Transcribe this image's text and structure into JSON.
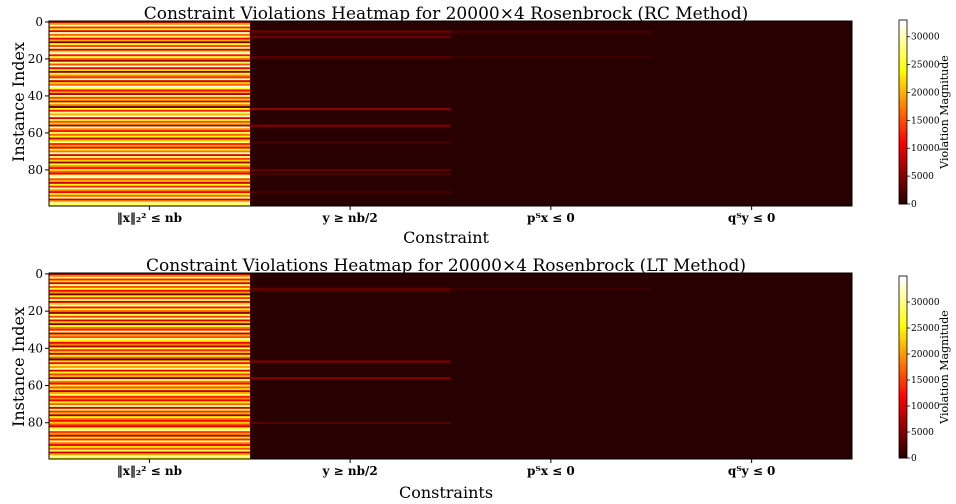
{
  "chart_data": [
    {
      "type": "heatmap",
      "title": "Constraint Violations Heatmap for 20000×4 Rosenbrock (RC Method)",
      "xlabel": "Constraint",
      "ylabel": "Instance Index",
      "categories": [
        "‖x‖₂² ≤ nb",
        "y ≥ nb/2",
        "pᵀx ≤ 0",
        "qᵀy ≤ 0"
      ],
      "y_ticks": [
        0,
        20,
        40,
        60,
        80
      ],
      "y_range": [
        0,
        99
      ],
      "colorbar": {
        "label": "Violation Magnitude",
        "min": 0,
        "max": 33000,
        "ticks": [
          0,
          5000,
          10000,
          15000,
          20000,
          25000,
          30000
        ]
      },
      "colormap": "hot",
      "col1_values": [
        6000,
        18000,
        30000,
        13000,
        24000,
        9000,
        31000,
        16000,
        27000,
        11000,
        20000,
        4000,
        25000,
        14000,
        29000,
        8000,
        22000,
        33000,
        12000,
        26000,
        17000,
        6000,
        28000,
        15000,
        31000,
        10000,
        23000,
        5000,
        27000,
        18000,
        13000,
        30000,
        8000,
        21000,
        16000,
        32000,
        25000,
        11000,
        19000,
        7000,
        28000,
        14000,
        22000,
        9000,
        26000,
        17000,
        3000,
        24000,
        12000,
        29000,
        20000,
        31000,
        10000,
        26000,
        15000,
        22000,
        6000,
        30000,
        18000,
        12000,
        27000,
        16000,
        24000,
        8000,
        21000,
        29000,
        13000,
        19000,
        11000,
        25000,
        17000,
        31000,
        9000,
        28000,
        14000,
        22000,
        6000,
        26000,
        18000,
        12000,
        23000,
        16000,
        10000,
        27000,
        32000,
        15000,
        20000,
        8000,
        25000,
        13000,
        30000,
        18000,
        11000,
        24000,
        16000,
        29000,
        9000,
        21000,
        31000,
        26000
      ],
      "col2_rows": [
        [
          5,
          3000
        ],
        [
          6,
          2000
        ],
        [
          8,
          3500
        ],
        [
          19,
          2500
        ],
        [
          47,
          5000
        ],
        [
          56,
          4500
        ],
        [
          65,
          1500
        ],
        [
          80,
          3000
        ],
        [
          82,
          1800
        ],
        [
          92,
          1500
        ]
      ],
      "col3_rows": [
        [
          5,
          1200
        ],
        [
          6,
          1000
        ],
        [
          19,
          1000
        ]
      ],
      "col4_rows": []
    },
    {
      "type": "heatmap",
      "title": "Constraint Violations Heatmap for 20000×4 Rosenbrock (LT Method)",
      "xlabel": "Constraints",
      "ylabel": "Instance Index",
      "categories": [
        "‖x‖₂² ≤ nb",
        "y ≥ nb/2",
        "pᵀx ≤ 0",
        "qᵀy ≤ 0"
      ],
      "y_ticks": [
        0,
        20,
        40,
        60,
        80
      ],
      "y_range": [
        0,
        99
      ],
      "colorbar": {
        "label": "Violation Magnitude",
        "min": 0,
        "max": 35000,
        "ticks": [
          0,
          5000,
          10000,
          15000,
          20000,
          25000,
          30000
        ]
      },
      "colormap": "hot",
      "col1_values": [
        6000,
        18000,
        30000,
        13000,
        24000,
        9000,
        31000,
        16000,
        27000,
        11000,
        20000,
        4000,
        25000,
        14000,
        29000,
        8000,
        22000,
        33000,
        12000,
        26000,
        17000,
        6000,
        28000,
        15000,
        31000,
        10000,
        23000,
        5000,
        27000,
        18000,
        13000,
        30000,
        8000,
        21000,
        16000,
        32000,
        25000,
        11000,
        19000,
        7000,
        28000,
        14000,
        22000,
        9000,
        26000,
        17000,
        3000,
        24000,
        12000,
        29000,
        20000,
        31000,
        10000,
        26000,
        15000,
        22000,
        6000,
        30000,
        18000,
        12000,
        27000,
        16000,
        24000,
        8000,
        21000,
        29000,
        13000,
        19000,
        11000,
        25000,
        17000,
        31000,
        9000,
        28000,
        14000,
        22000,
        6000,
        26000,
        18000,
        12000,
        23000,
        16000,
        10000,
        27000,
        32000,
        15000,
        20000,
        8000,
        25000,
        13000,
        30000,
        18000,
        11000,
        24000,
        16000,
        29000,
        9000,
        21000,
        31000,
        26000
      ],
      "col2_rows": [
        [
          8,
          3000
        ],
        [
          9,
          2000
        ],
        [
          47,
          4500
        ],
        [
          56,
          5000
        ],
        [
          80,
          2500
        ]
      ],
      "col3_rows": [
        [
          8,
          1000
        ]
      ],
      "col4_rows": []
    }
  ]
}
